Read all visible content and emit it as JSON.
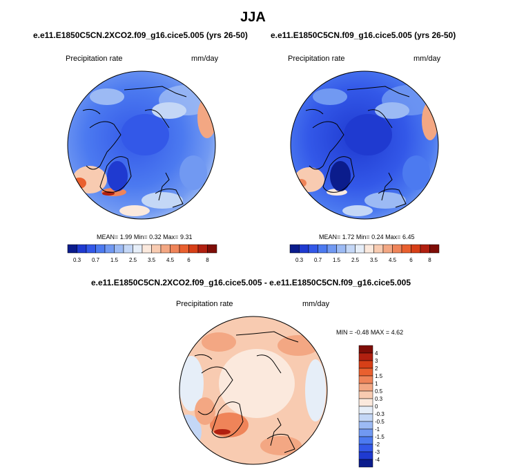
{
  "title": "JJA",
  "panels": [
    {
      "id": "left",
      "case": "e.e11.E1850C5CN.2XCO2.f09_g16.cice5.005 (yrs 26-50)",
      "field": "Precipitation rate",
      "units": "mm/day",
      "stats": {
        "mean_label": "MEAN=",
        "mean": "1.99",
        "min_label": "Min=",
        "min": "0.32",
        "max_label": "Max=",
        "max": "9.31"
      }
    },
    {
      "id": "right",
      "case": "e.e11.E1850C5CN.f09_g16.cice5.005 (yrs 26-50)",
      "field": "Precipitation rate",
      "units": "mm/day",
      "stats": {
        "mean_label": "MEAN=",
        "mean": "1.72",
        "min_label": "Min=",
        "min": "0.24",
        "max_label": "Max=",
        "max": "6.45"
      }
    },
    {
      "id": "diff",
      "case": "e.e11.E1850C5CN.2XCO2.f09_g16.cice5.005 - e.e11.E1850C5CN.f09_g16.cice5.005",
      "field": "Precipitation rate",
      "units": "mm/day",
      "stats": {
        "min_label": "MIN =",
        "min": "-0.48",
        "max_label": "MAX =",
        "max": "4.62"
      }
    }
  ],
  "colorbar_abs": {
    "ticks": [
      "0.3",
      "0.7",
      "1.5",
      "2.5",
      "3.5",
      "4.5",
      "6",
      "8"
    ],
    "colors": [
      "#0b1c8c",
      "#1f3ad0",
      "#3358e8",
      "#4c7af0",
      "#7199f2",
      "#9cbaf4",
      "#c4d7f6",
      "#e6eef8",
      "#fbe9dd",
      "#f8cbb1",
      "#f3a783",
      "#ef8459",
      "#e9602f",
      "#d73f17",
      "#b12010",
      "#7e0d07"
    ]
  },
  "colorbar_diff": {
    "ticks": [
      "4",
      "3",
      "2",
      "1.5",
      "1",
      "0.5",
      "0.3",
      "0",
      "-0.3",
      "-0.5",
      "-1",
      "-1.5",
      "-2",
      "-3",
      "-4"
    ],
    "colors": [
      "#7e0d07",
      "#b12010",
      "#d73f17",
      "#e9602f",
      "#ef8459",
      "#f3a783",
      "#f8cbb1",
      "#fbe9dd",
      "#e6eef8",
      "#c4d7f6",
      "#9cbaf4",
      "#7199f2",
      "#4c7af0",
      "#3358e8",
      "#1f3ad0",
      "#0b1c8c"
    ]
  },
  "chart_data": [
    {
      "type": "heatmap",
      "title": "e.e11.E1850C5CN.2XCO2.f09_g16.cice5.005 (yrs 26-50)",
      "subtitle": "Precipitation rate",
      "units": "mm/day",
      "projection": "polar stereographic (North Pole)",
      "mean": 1.99,
      "min": 0.32,
      "max": 9.31,
      "levels": [
        0.3,
        0.7,
        1.5,
        2.5,
        3.5,
        4.5,
        6,
        8
      ]
    },
    {
      "type": "heatmap",
      "title": "e.e11.E1850C5CN.f09_g16.cice5.005 (yrs 26-50)",
      "subtitle": "Precipitation rate",
      "units": "mm/day",
      "projection": "polar stereographic (North Pole)",
      "mean": 1.72,
      "min": 0.24,
      "max": 6.45,
      "levels": [
        0.3,
        0.7,
        1.5,
        2.5,
        3.5,
        4.5,
        6,
        8
      ]
    },
    {
      "type": "heatmap",
      "title": "e.e11.E1850C5CN.2XCO2.f09_g16.cice5.005 - e.e11.E1850C5CN.f09_g16.cice5.005",
      "subtitle": "Precipitation rate",
      "units": "mm/day",
      "projection": "polar stereographic (North Pole)",
      "min": -0.48,
      "max": 4.62,
      "levels": [
        -4,
        -3,
        -2,
        -1.5,
        -1,
        -0.5,
        -0.3,
        0,
        0.3,
        0.5,
        1,
        1.5,
        2,
        3,
        4
      ]
    }
  ]
}
